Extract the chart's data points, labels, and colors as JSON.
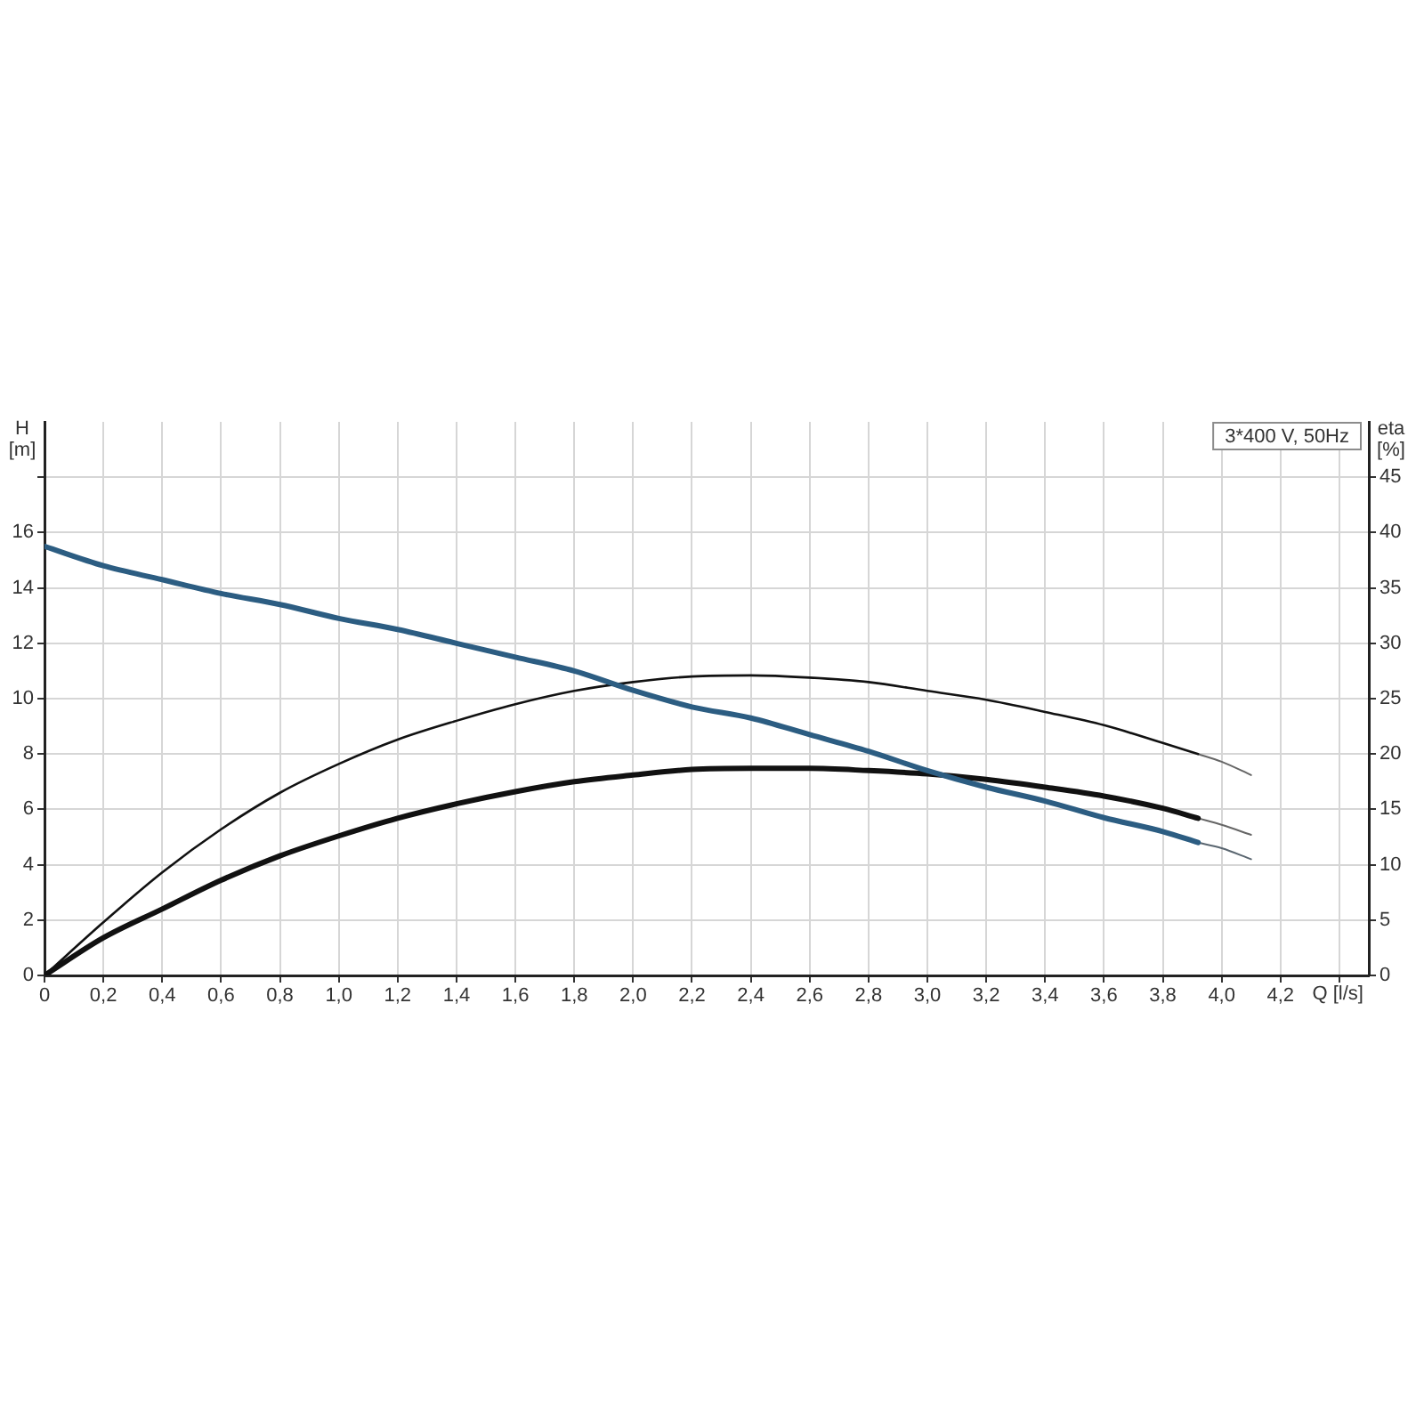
{
  "chart_data": {
    "type": "line",
    "xlabel": "Q [l/s]",
    "ylabel": "H [m]",
    "y2label": "eta [%]",
    "annotations": [
      "3*400 V, 50Hz"
    ],
    "xlim": [
      0,
      4.5
    ],
    "xticks": [
      0,
      {
        "value": 0.2,
        "label": "0,2"
      },
      {
        "value": 0.4,
        "label": "0,4"
      },
      {
        "value": 0.6,
        "label": "0,6"
      },
      {
        "value": 0.8,
        "label": "0,8"
      },
      {
        "value": 1.0,
        "label": "1,0"
      },
      {
        "value": 1.2,
        "label": "1,2"
      },
      {
        "value": 1.4,
        "label": "1,4"
      },
      {
        "value": 1.6,
        "label": "1,6"
      },
      {
        "value": 1.8,
        "label": "1,8"
      },
      {
        "value": 2.0,
        "label": "2,0"
      },
      {
        "value": 2.2,
        "label": "2,2"
      },
      {
        "value": 2.4,
        "label": "2,4"
      },
      {
        "value": 2.6,
        "label": "2,6"
      },
      {
        "value": 2.8,
        "label": "2,8"
      },
      {
        "value": 3.0,
        "label": "3,0"
      },
      {
        "value": 3.2,
        "label": "3,2"
      },
      {
        "value": 3.4,
        "label": "3,4"
      },
      {
        "value": 3.6,
        "label": "3,6"
      },
      {
        "value": 3.8,
        "label": "3,8"
      },
      {
        "value": 4.0,
        "label": "4,0"
      },
      {
        "value": 4.2,
        "label": "4,2"
      },
      {
        "value": 4.4,
        "label": null
      }
    ],
    "ylim": [
      0,
      20
    ],
    "yticks": [
      0,
      2,
      4,
      6,
      8,
      10,
      12,
      14,
      16,
      {
        "value": 18,
        "label": null
      }
    ],
    "y2lim": [
      0,
      50
    ],
    "y2ticks": [
      0,
      5,
      10,
      15,
      20,
      25,
      30,
      35,
      40,
      45
    ],
    "grid": true,
    "marker": "none",
    "series": [
      {
        "color": "#2c5d82",
        "x": [
          0,
          0.2,
          0.4,
          0.6,
          0.8,
          1.0,
          1.2,
          1.4,
          1.6,
          1.8,
          2.0,
          2.2,
          2.4,
          2.6,
          2.8,
          3.0,
          3.2,
          3.4,
          3.6,
          3.8,
          3.92
        ],
        "values": [
          15.5,
          14.8,
          14.3,
          13.8,
          13.4,
          12.9,
          12.5,
          12.0,
          11.5,
          11.0,
          10.3,
          9.7,
          9.3,
          8.7,
          8.1,
          7.4,
          6.8,
          6.3,
          5.7,
          5.2,
          4.8
        ]
      },
      {
        "color": "#5a6670",
        "x": [
          3.92,
          4.0,
          4.1
        ],
        "values": [
          4.8,
          4.6,
          4.2
        ]
      },
      {
        "color": "#111111",
        "axis": "y2",
        "x": [
          0,
          0.2,
          0.4,
          0.6,
          0.8,
          1.0,
          1.2,
          1.4,
          1.6,
          1.8,
          2.0,
          2.2,
          2.4,
          2.6,
          2.8,
          3.0,
          3.2,
          3.4,
          3.6,
          3.8,
          3.92
        ],
        "values": [
          0,
          4.8,
          9.3,
          13.2,
          16.5,
          19.1,
          21.3,
          23.0,
          24.5,
          25.7,
          26.5,
          27.0,
          27.1,
          26.9,
          26.5,
          25.7,
          24.9,
          23.8,
          22.6,
          21.0,
          20.0
        ]
      },
      {
        "color": "#666666",
        "axis": "y2",
        "x": [
          3.92,
          4.0,
          4.1
        ],
        "values": [
          20.0,
          19.3,
          18.1
        ]
      },
      {
        "color": "#111111",
        "axis": "y2",
        "x": [
          0,
          0.2,
          0.4,
          0.6,
          0.8,
          1.0,
          1.2,
          1.4,
          1.6,
          1.8,
          2.0,
          2.2,
          2.4,
          2.6,
          2.8,
          3.0,
          3.2,
          3.4,
          3.6,
          3.8,
          3.92
        ],
        "values": [
          0,
          3.4,
          6.0,
          8.6,
          10.8,
          12.6,
          14.2,
          15.5,
          16.6,
          17.5,
          18.1,
          18.6,
          18.7,
          18.7,
          18.5,
          18.2,
          17.7,
          17.0,
          16.2,
          15.1,
          14.2
        ]
      },
      {
        "color": "#666666",
        "axis": "y2",
        "x": [
          3.92,
          4.0,
          4.1
        ],
        "values": [
          14.2,
          13.6,
          12.7
        ]
      }
    ]
  }
}
